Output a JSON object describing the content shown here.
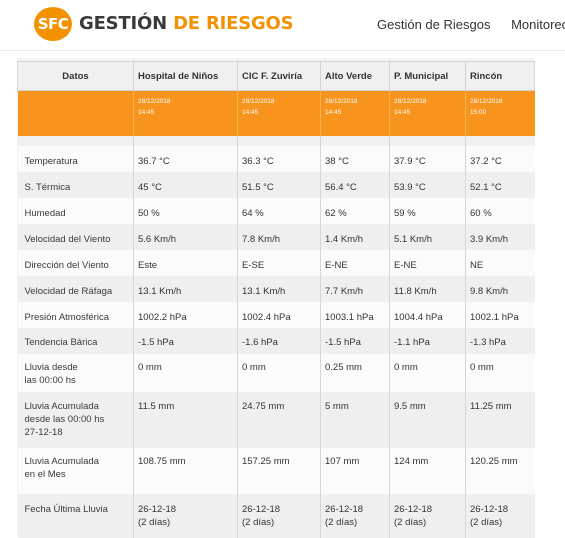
{
  "header": {
    "logo_mark": "SFC",
    "logo_word1": "GESTIÓN",
    "logo_word2": "DE RIESGOS",
    "nav": [
      "Gestión de Riesgos",
      "Monitoreo,"
    ]
  },
  "table": {
    "corner_label": "Datos",
    "stations": [
      {
        "name": "Hospital de Niños",
        "date": "28/12/2018",
        "time": "14:45"
      },
      {
        "name": "CIC F. Zuviría",
        "date": "28/12/2018",
        "time": "14:45"
      },
      {
        "name": "Alto Verde",
        "date": "28/12/2018",
        "time": "14:45"
      },
      {
        "name": "P. Municipal",
        "date": "28/12/2018",
        "time": "14:45"
      },
      {
        "name": "Rincón",
        "date": "28/12/2018",
        "time": "15:00"
      }
    ],
    "rows": [
      {
        "label": [
          "Temperatura"
        ],
        "values": [
          [
            "36.7 °C"
          ],
          [
            "36.3 °C"
          ],
          [
            "38 °C"
          ],
          [
            "37.9 °C"
          ],
          [
            "37.2 °C"
          ]
        ]
      },
      {
        "label": [
          "S. Térmica"
        ],
        "values": [
          [
            "45 °C"
          ],
          [
            "51.5 °C"
          ],
          [
            "56.4 °C"
          ],
          [
            "53.9 °C"
          ],
          [
            "52.1 °C"
          ]
        ]
      },
      {
        "label": [
          "Humedad"
        ],
        "values": [
          [
            "50 %"
          ],
          [
            "64 %"
          ],
          [
            "62 %"
          ],
          [
            "59 %"
          ],
          [
            "60 %"
          ]
        ]
      },
      {
        "label": [
          "Velocidad del Viento"
        ],
        "values": [
          [
            "5.6 Km/h"
          ],
          [
            "7.8 Km/h"
          ],
          [
            "1.4 Km/h"
          ],
          [
            "5.1 Km/h"
          ],
          [
            "3.9 Km/h"
          ]
        ]
      },
      {
        "label": [
          "Dirección del Viento"
        ],
        "values": [
          [
            "Este"
          ],
          [
            "E-SE"
          ],
          [
            "E-NE"
          ],
          [
            "E-NE"
          ],
          [
            "NE"
          ]
        ]
      },
      {
        "label": [
          "Velocidad de Ráfaga"
        ],
        "values": [
          [
            "13.1 Km/h"
          ],
          [
            "13.1 Km/h"
          ],
          [
            "7.7 Km/h"
          ],
          [
            "11.8 Km/h"
          ],
          [
            "9.8 Km/h"
          ]
        ]
      },
      {
        "label": [
          "Presión Atmosférica"
        ],
        "values": [
          [
            "1002.2 hPa"
          ],
          [
            "1002.4 hPa"
          ],
          [
            "1003.1 hPa"
          ],
          [
            "1004.4 hPa"
          ],
          [
            "1002.1 hPa"
          ]
        ]
      },
      {
        "label": [
          "Tendencia Bárica"
        ],
        "values": [
          [
            "-1.5 hPa"
          ],
          [
            "-1.6 hPa"
          ],
          [
            "-1.5 hPa"
          ],
          [
            "-1.1 hPa"
          ],
          [
            "-1.3 hPa"
          ]
        ]
      },
      {
        "label": [
          "Lluvia desde",
          "las 00:00 hs"
        ],
        "values": [
          [
            "0 mm"
          ],
          [
            "0 mm"
          ],
          [
            "0.25 mm"
          ],
          [
            "0 mm"
          ],
          [
            "0 mm"
          ]
        ]
      },
      {
        "label": [
          "Lluvia Acumulada",
          "desde las 00:00 hs",
          "27-12-18"
        ],
        "values": [
          [
            "11.5 mm"
          ],
          [
            "24.75 mm"
          ],
          [
            "5 mm"
          ],
          [
            "9.5 mm"
          ],
          [
            "11.25 mm"
          ]
        ]
      },
      {
        "label": [
          "Lluvia Acumulada",
          "en el Mes"
        ],
        "values": [
          [
            "108.75 mm"
          ],
          [
            "157.25 mm"
          ],
          [
            "107 mm"
          ],
          [
            "124 mm"
          ],
          [
            "120.25 mm"
          ]
        ]
      },
      {
        "label": [
          "Fecha Última Lluvia"
        ],
        "values": [
          [
            "26-12-18",
            "(2 días)"
          ],
          [
            "26-12-18",
            "(2 días)"
          ],
          [
            "26-12-18",
            "(2 días)"
          ],
          [
            "26-12-18",
            "(2 días)"
          ],
          [
            "26-12-18",
            "(2 días)"
          ]
        ]
      }
    ]
  },
  "colors": {
    "accent": "#f7941d",
    "logo": "#f39200"
  }
}
